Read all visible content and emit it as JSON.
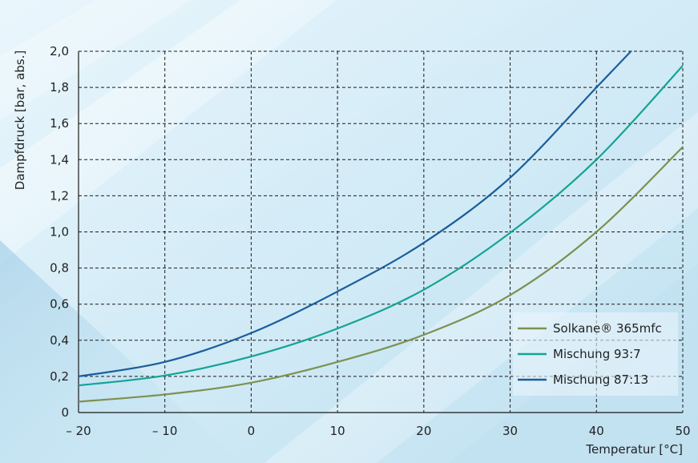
{
  "chart_data": {
    "type": "line",
    "title": "",
    "xlabel": "Temperatur [°C]",
    "ylabel": "Dampfdruck [bar, abs.]",
    "xlim": [
      -20,
      50
    ],
    "ylim": [
      0,
      2.0
    ],
    "x_ticks": [
      "– 20",
      "– 10",
      "0",
      "10",
      "20",
      "30",
      "40",
      "50"
    ],
    "y_ticks": [
      "0",
      "0,2",
      "0,4",
      "0,6",
      "0,8",
      "1,0",
      "1,2",
      "1,4",
      "1,6",
      "1,8",
      "2,0"
    ],
    "grid": true,
    "legend_position": "bottom-right",
    "series": [
      {
        "name": "Solkane® 365mfc",
        "color": "#7d9150",
        "points": [
          [
            -20,
            0.06
          ],
          [
            -10,
            0.1
          ],
          [
            0,
            0.165
          ],
          [
            10,
            0.28
          ],
          [
            20,
            0.43
          ],
          [
            30,
            0.65
          ],
          [
            40,
            1.0
          ],
          [
            50,
            1.47
          ]
        ]
      },
      {
        "name": "Mischung 93:7",
        "color": "#14a396",
        "points": [
          [
            -20,
            0.15
          ],
          [
            -10,
            0.205
          ],
          [
            0,
            0.31
          ],
          [
            10,
            0.465
          ],
          [
            20,
            0.68
          ],
          [
            30,
            0.995
          ],
          [
            40,
            1.4
          ],
          [
            50,
            1.92
          ]
        ]
      },
      {
        "name": "Mischung 87:13",
        "color": "#1a5e9a",
        "points": [
          [
            -20,
            0.2
          ],
          [
            -10,
            0.28
          ],
          [
            0,
            0.44
          ],
          [
            10,
            0.67
          ],
          [
            20,
            0.94
          ],
          [
            30,
            1.3
          ],
          [
            40,
            1.8
          ],
          [
            44,
            2.0
          ]
        ]
      }
    ]
  }
}
